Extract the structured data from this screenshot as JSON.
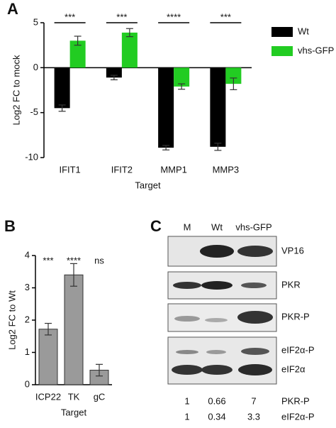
{
  "chart_data": [
    {
      "type": "bar",
      "panel_label": "A",
      "y_label": "Log2 FC to mock",
      "x_label": "Target",
      "categories": [
        "IFIT1",
        "IFIT2",
        "MMP1",
        "MMP3"
      ],
      "series": [
        {
          "name": "Wt",
          "color": "#000000",
          "values": [
            -4.5,
            -1.1,
            -8.9,
            -8.8
          ],
          "errors": [
            0.35,
            0.25,
            0.25,
            0.4
          ]
        },
        {
          "name": "vhs-GFP",
          "color": "#22cc22",
          "values": [
            3.0,
            3.9,
            -2.1,
            -1.8
          ],
          "errors": [
            0.5,
            0.45,
            0.3,
            0.65
          ]
        }
      ],
      "annotations": [
        "***",
        "***",
        "****",
        "***"
      ],
      "ylim": [
        -10,
        5
      ],
      "yticks": [
        -10,
        -5,
        0,
        5
      ],
      "legend": "right"
    },
    {
      "type": "bar",
      "panel_label": "B",
      "y_label": "Log2 FC to Wt",
      "x_label": "Target",
      "categories": [
        "ICP22",
        "TK",
        "gC"
      ],
      "color": "#9a9a9a",
      "values": [
        1.72,
        3.4,
        0.45
      ],
      "errors": [
        0.18,
        0.35,
        0.18
      ],
      "annotations": [
        "***",
        "****",
        "ns"
      ],
      "ylim": [
        0,
        4
      ],
      "yticks": [
        0,
        1,
        2,
        3,
        4
      ]
    }
  ],
  "blot": {
    "panel_label": "C",
    "lanes": [
      "M",
      "Wt",
      "vhs-GFP"
    ],
    "bands": [
      "VP16",
      "PKR",
      "PKR-P",
      "eIF2α-P",
      "eIF2α"
    ],
    "quant": [
      {
        "label": "PKR-P",
        "values": [
          1,
          0.66,
          7
        ]
      },
      {
        "label": "eIF2α-P",
        "values": [
          1,
          0.34,
          3.3
        ]
      }
    ]
  }
}
